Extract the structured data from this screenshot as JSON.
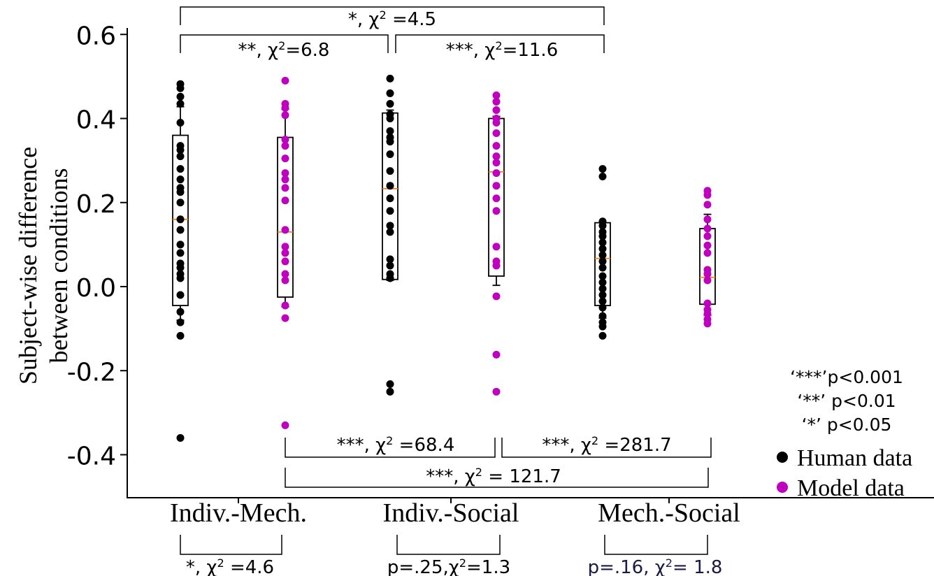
{
  "chart_data": {
    "type": "box+strip",
    "ylabel_line1": "Subject-wise difference",
    "ylabel_line2": "between conditions",
    "ylim": [
      -0.5,
      0.65
    ],
    "yticks": [
      0.6,
      0.4,
      0.2,
      0.0,
      -0.2,
      -0.4
    ],
    "ytick_labels": [
      "0.6",
      "0.4",
      "0.2",
      "0.0",
      "-0.2",
      "-0.4"
    ],
    "categories": [
      "Indiv.-Mech.",
      "Indiv.-Social",
      "Mech.-Social"
    ],
    "series": [
      {
        "name": "Human data",
        "color": "#000000"
      },
      {
        "name": "Model data",
        "color": "#bf00bf"
      }
    ],
    "groups": [
      {
        "category": "Indiv.-Mech.",
        "series": "Human data",
        "box": {
          "q1": -0.045,
          "median": 0.16,
          "q3": 0.36,
          "whisker_low": -0.08,
          "whisker_high": 0.428
        },
        "points": [
          0.482,
          0.472,
          0.452,
          0.435,
          0.39,
          0.335,
          0.325,
          0.31,
          0.28,
          0.255,
          0.235,
          0.225,
          0.2,
          0.16,
          0.135,
          0.1,
          0.08,
          0.055,
          0.045,
          0.03,
          0.02,
          -0.02,
          -0.06,
          -0.085,
          -0.117,
          -0.36
        ]
      },
      {
        "category": "Indiv.-Mech.",
        "series": "Model data",
        "box": {
          "q1": -0.025,
          "median": 0.13,
          "q3": 0.355,
          "whisker_low": -0.048,
          "whisker_high": 0.422
        },
        "points": [
          0.49,
          0.435,
          0.425,
          0.408,
          0.35,
          0.335,
          0.305,
          0.27,
          0.255,
          0.235,
          0.205,
          0.135,
          0.095,
          0.08,
          0.06,
          0.03,
          0.015,
          -0.045,
          -0.075,
          -0.33
        ]
      },
      {
        "category": "Indiv.-Social",
        "series": "Human data",
        "box": {
          "q1": 0.017,
          "median": 0.233,
          "q3": 0.413,
          "whisker_low": 0.015,
          "whisker_high": 0.42
        },
        "points": [
          0.495,
          0.46,
          0.435,
          0.41,
          0.4,
          0.37,
          0.355,
          0.345,
          0.315,
          0.275,
          0.24,
          0.21,
          0.18,
          0.145,
          0.13,
          0.065,
          0.05,
          0.03,
          0.02,
          -0.232,
          -0.25
        ]
      },
      {
        "category": "Indiv.-Social",
        "series": "Model data",
        "box": {
          "q1": 0.025,
          "median": 0.273,
          "q3": 0.4,
          "whisker_low": 0.003,
          "whisker_high": 0.405
        },
        "points": [
          0.455,
          0.44,
          0.42,
          0.4,
          0.39,
          0.365,
          0.335,
          0.31,
          0.295,
          0.27,
          0.24,
          0.21,
          0.18,
          0.095,
          0.06,
          0.05,
          -0.023,
          -0.162,
          -0.25
        ]
      },
      {
        "category": "Mech.-Social",
        "series": "Human data",
        "box": {
          "q1": -0.045,
          "median": 0.067,
          "q3": 0.152,
          "whisker_low": -0.075,
          "whisker_high": 0.155
        },
        "points": [
          0.28,
          0.262,
          0.155,
          0.145,
          0.13,
          0.12,
          0.105,
          0.09,
          0.075,
          0.06,
          0.045,
          0.025,
          0.01,
          -0.005,
          -0.02,
          -0.035,
          -0.05,
          -0.07,
          -0.085,
          -0.095,
          -0.117
        ]
      },
      {
        "category": "Mech.-Social",
        "series": "Model data",
        "box": {
          "q1": -0.042,
          "median": 0.022,
          "q3": 0.138,
          "whisker_low": -0.068,
          "whisker_high": 0.172
        },
        "points": [
          0.228,
          0.218,
          0.195,
          0.16,
          0.138,
          0.12,
          0.098,
          0.08,
          0.04,
          0.03,
          0.015,
          -0.04,
          -0.055,
          -0.065,
          -0.078,
          -0.088
        ]
      }
    ],
    "significance_top": [
      {
        "label_pre": "*, χ",
        "sup": "2",
        "label_post": " =4.5"
      },
      {
        "label_pre": "**, χ",
        "sup": "2",
        "label_post": "=6.8"
      },
      {
        "label_pre": "***, χ",
        "sup": "2",
        "label_post": "=11.6"
      }
    ],
    "significance_bottom": [
      {
        "label_pre": "***, χ",
        "sup": "2",
        "label_post": " =68.4"
      },
      {
        "label_pre": "***, χ",
        "sup": "2",
        "label_post": " =281.7"
      },
      {
        "label_pre": "***, χ",
        "sup": "2",
        "label_post": " = 121.7"
      }
    ],
    "significance_pairs": [
      {
        "label_pre": "*, χ",
        "sup": "2",
        "label_post": " =4.6",
        "color": "#000000"
      },
      {
        "label_pre": "p=.25,χ",
        "sup": "2",
        "label_post": "=1.3",
        "color": "#000000"
      },
      {
        "label_pre": "p=.16, χ",
        "sup": "2",
        "label_post": "= 1.8",
        "color": "#1a1a4a"
      }
    ],
    "significance_legend": [
      "‘***’p<0.001",
      "‘**’ p<0.01",
      "‘*’ p<0.05"
    ],
    "legend_position": "right"
  }
}
